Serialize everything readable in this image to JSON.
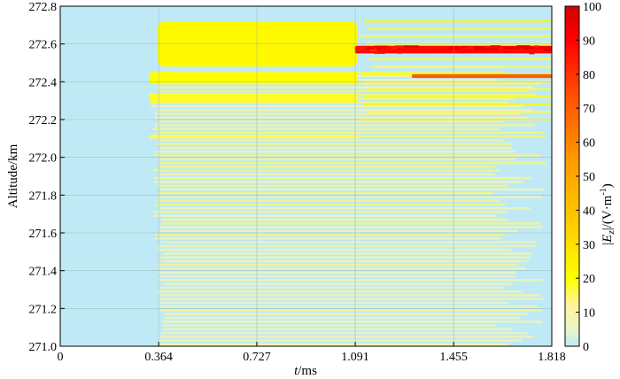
{
  "chart_data": {
    "type": "heatmap",
    "title": "",
    "xlabel": "t/ms",
    "xlabel_italic_part": "t",
    "xlabel_rest": "/ms",
    "ylabel": "Altitude/km",
    "colorbar_label": "|Ez|/(V·m⁻¹)",
    "colorbar_label_parts": {
      "open": "|",
      "E": "E",
      "z": "z",
      "close": "|/(V·m",
      "sup": "-1",
      "end": ")"
    },
    "xlim": [
      0,
      1.818
    ],
    "ylim": [
      271.0,
      272.8
    ],
    "x_ticks": [
      0,
      0.364,
      0.727,
      1.091,
      1.455,
      1.818
    ],
    "x_tick_labels": [
      "0",
      "0.364",
      "0.727",
      "1.091",
      "1.455",
      "1.818"
    ],
    "y_ticks": [
      271.0,
      271.2,
      271.4,
      271.6,
      271.8,
      272.0,
      272.2,
      272.4,
      272.6,
      272.8
    ],
    "y_tick_labels": [
      "271.0",
      "271.2",
      "271.4",
      "271.6",
      "271.8",
      "272.0",
      "272.2",
      "272.4",
      "272.6",
      "272.8"
    ],
    "colorbar_range": [
      0,
      100
    ],
    "colorbar_ticks": [
      0,
      10,
      20,
      30,
      40,
      50,
      60,
      70,
      80,
      90,
      100
    ],
    "colorbar_tick_labels": [
      "0",
      "10",
      "20",
      "30",
      "40",
      "50",
      "60",
      "70",
      "80",
      "90",
      "100"
    ],
    "colormap": [
      "#bfeaf5",
      "#fff4a0",
      "#ffff00",
      "#ffd000",
      "#ff9a00",
      "#ff4a00",
      "#ff0000",
      "#d40000"
    ],
    "grid": true,
    "field": {
      "background_value": 3,
      "wave_onset_ms": 0.33,
      "bands": [
        {
          "y": [
            272.48,
            272.72
          ],
          "x": [
            0.36,
            1.1
          ],
          "value": 22
        },
        {
          "y": [
            272.39,
            272.45
          ],
          "x": [
            0.33,
            1.1
          ],
          "value": 20
        },
        {
          "y": [
            272.29,
            272.34
          ],
          "x": [
            0.33,
            1.1
          ],
          "value": 18
        },
        {
          "y": [
            272.1,
            272.12
          ],
          "x": [
            0.33,
            1.1
          ],
          "value": 16
        },
        {
          "y": [
            272.55,
            272.59
          ],
          "x": [
            1.09,
            1.818
          ],
          "value": 88
        },
        {
          "y": [
            272.42,
            272.44
          ],
          "x": [
            1.3,
            1.818
          ],
          "value": 70
        }
      ]
    }
  }
}
